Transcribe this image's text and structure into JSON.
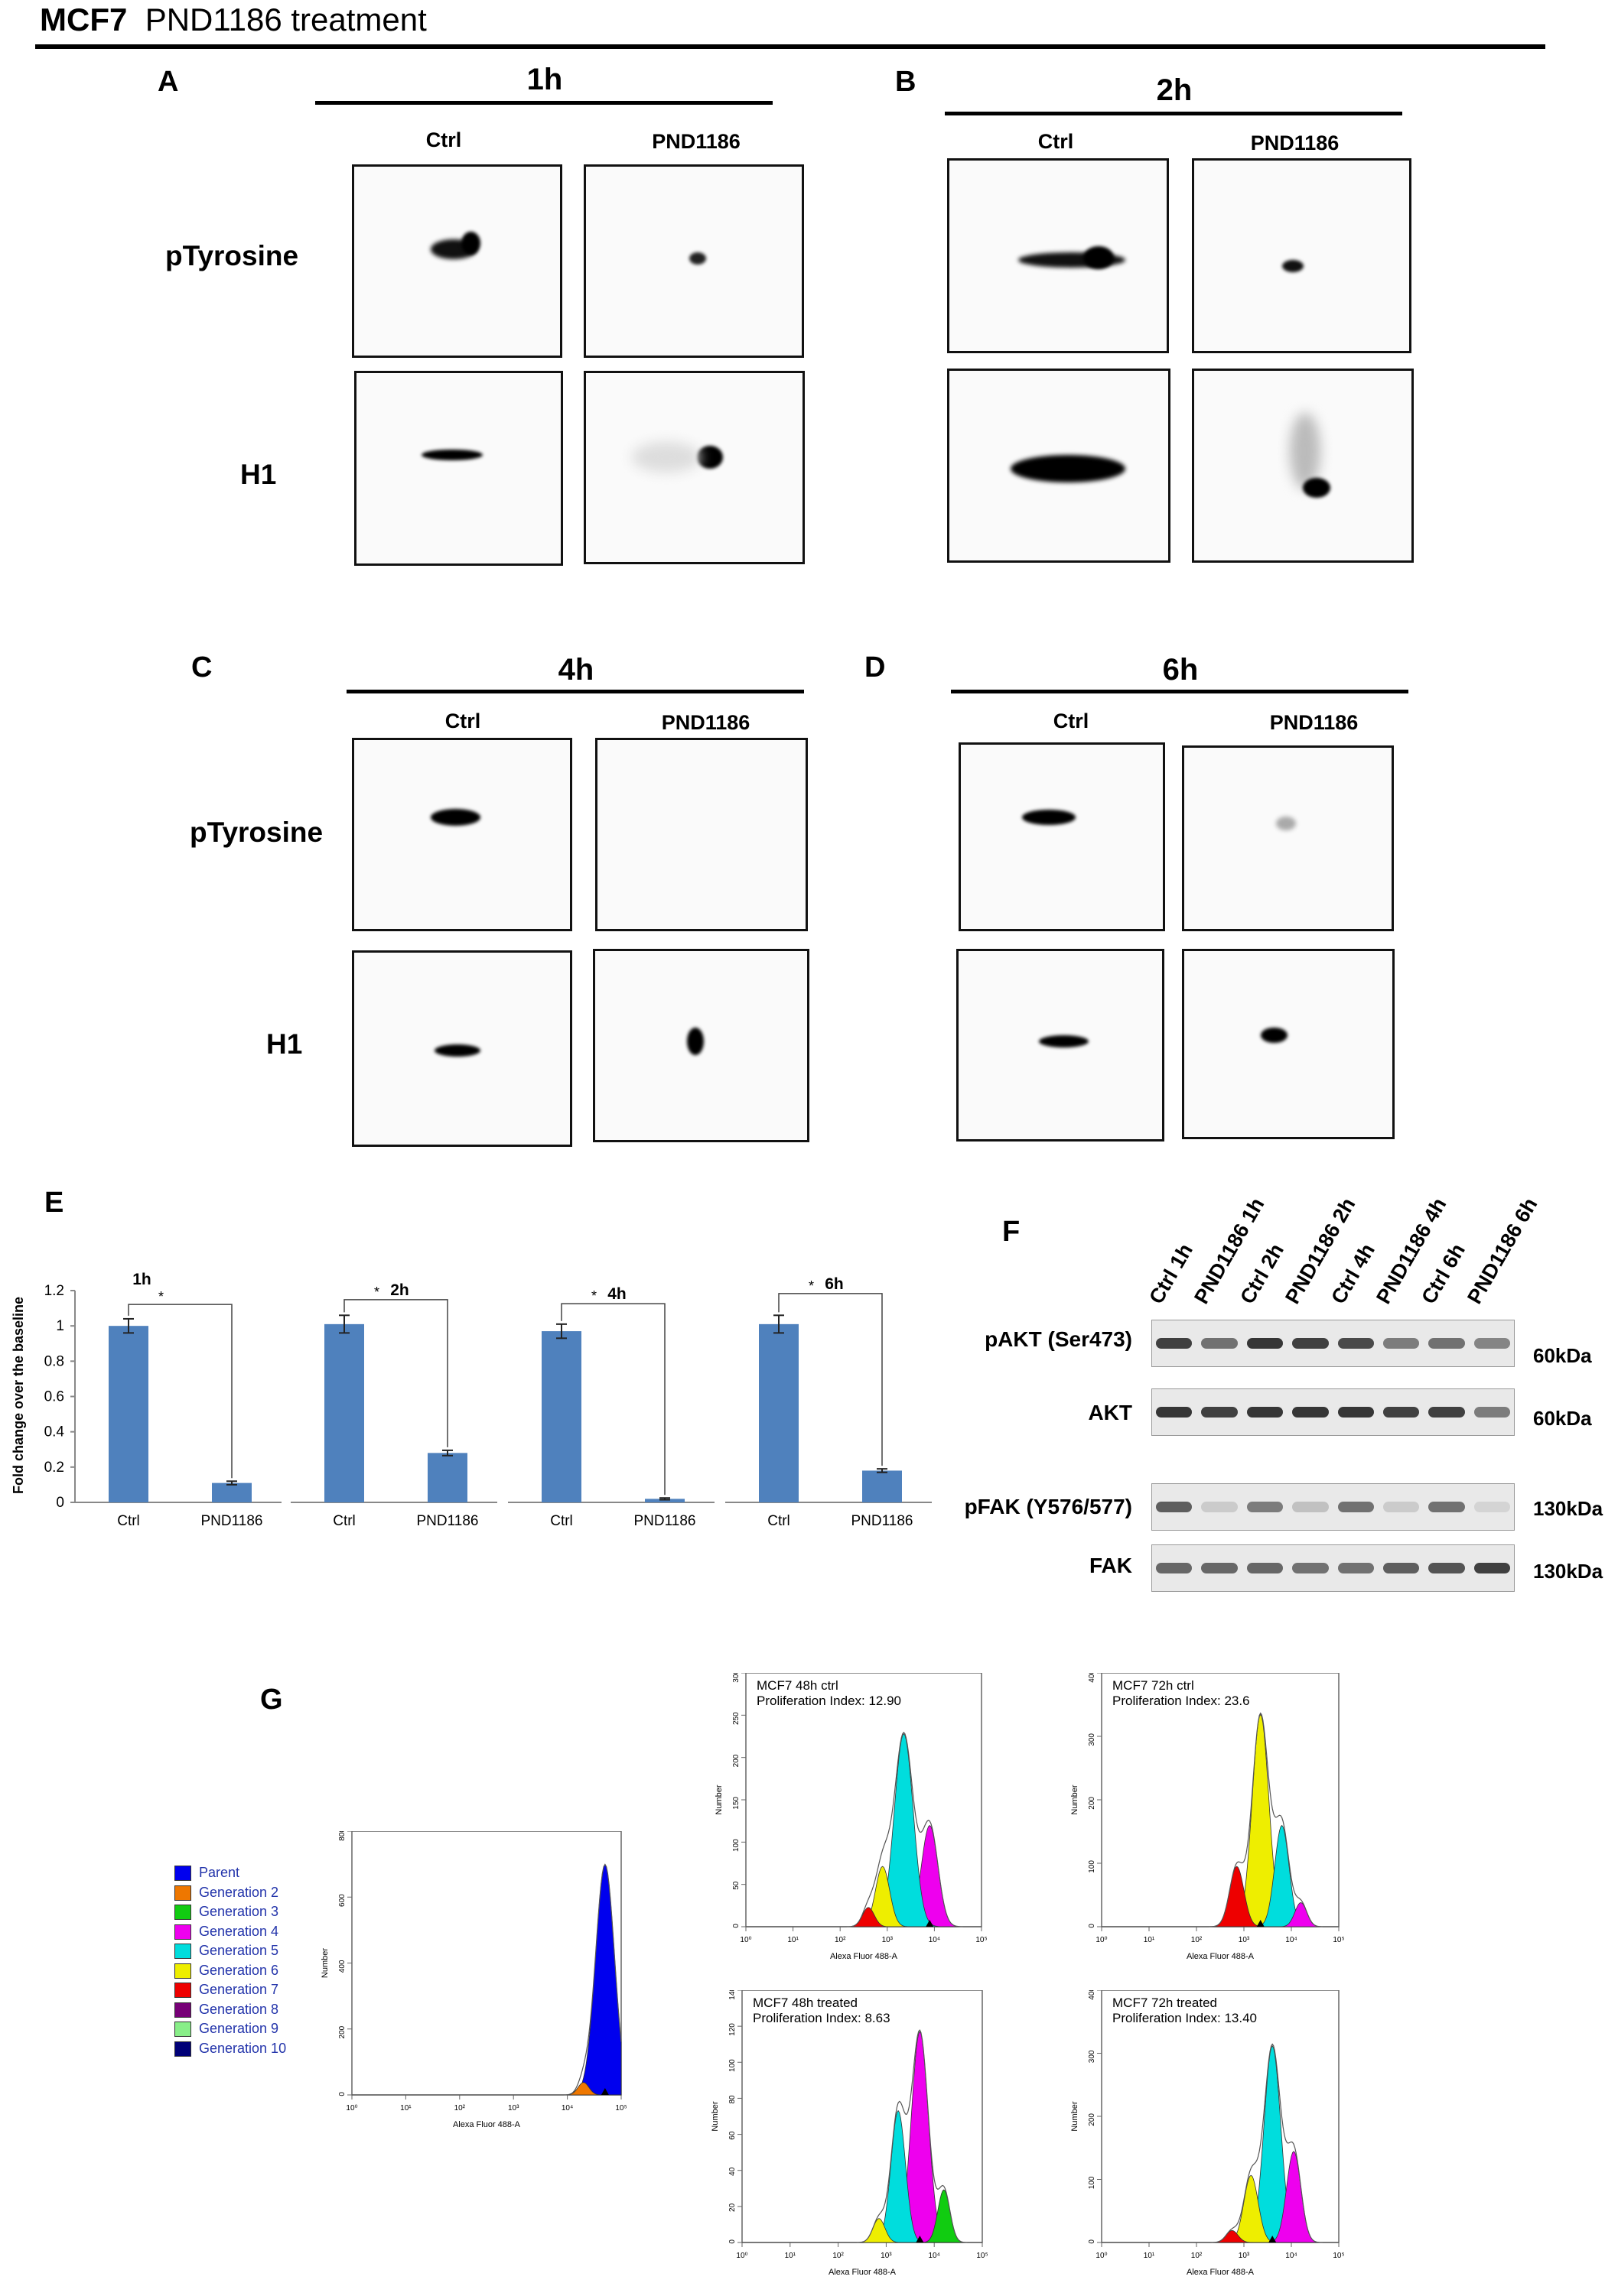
{
  "figure_title": {
    "cell_line": "MCF7",
    "treatment": "PND1186 treatment"
  },
  "panels": {
    "A": {
      "label": "A",
      "time": "1h",
      "cols": [
        "Ctrl",
        "PND1186"
      ],
      "rows": [
        "pTyrosine",
        "H1"
      ]
    },
    "B": {
      "label": "B",
      "time": "2h",
      "cols": [
        "Ctrl",
        "PND1186"
      ]
    },
    "C": {
      "label": "C",
      "time": "4h",
      "cols": [
        "Ctrl",
        "PND1186"
      ],
      "rows": [
        "pTyrosine",
        "H1"
      ]
    },
    "D": {
      "label": "D",
      "time": "6h",
      "cols": [
        "Ctrl",
        "PND1186"
      ]
    },
    "E": {
      "label": "E"
    },
    "F": {
      "label": "F"
    },
    "G": {
      "label": "G"
    }
  },
  "chart_data": [
    {
      "type": "bar",
      "ylabel": "Fold change over the baseline",
      "ylim": [
        0,
        1.2
      ],
      "yticks": [
        "0",
        "0.2",
        "0.4",
        "0.6",
        "0.8",
        "1",
        "1.2"
      ],
      "groups": [
        {
          "time": "1h",
          "categories": [
            "Ctrl",
            "PND1186"
          ],
          "values": [
            1.0,
            0.11
          ],
          "errors": [
            0.04,
            0.01
          ],
          "sig": "*"
        },
        {
          "time": "2h",
          "categories": [
            "Ctrl",
            "PND1186"
          ],
          "values": [
            1.01,
            0.28
          ],
          "errors": [
            0.05,
            0.015
          ],
          "sig": "*"
        },
        {
          "time": "4h",
          "categories": [
            "Ctrl",
            "PND1186"
          ],
          "values": [
            0.97,
            0.02
          ],
          "errors": [
            0.04,
            0.005
          ],
          "sig": "*"
        },
        {
          "time": "6h",
          "categories": [
            "Ctrl",
            "PND1186"
          ],
          "values": [
            1.01,
            0.18
          ],
          "errors": [
            0.05,
            0.01
          ],
          "sig": "*"
        }
      ],
      "color": "#4f81bd"
    }
  ],
  "western": {
    "lanes": [
      "Ctrl 1h",
      "PND1186 1h",
      "Ctrl 2h",
      "PND1186 2h",
      "Ctrl 4h",
      "PND1186 4h",
      "Ctrl 6h",
      "PND1186 6h"
    ],
    "rows": [
      {
        "label": "pAKT (Ser473)",
        "kda": "60kDa",
        "intensity": [
          0.85,
          0.6,
          0.9,
          0.85,
          0.8,
          0.55,
          0.6,
          0.5
        ]
      },
      {
        "label": "AKT",
        "kda": "60kDa",
        "intensity": [
          0.9,
          0.85,
          0.9,
          0.9,
          0.9,
          0.85,
          0.85,
          0.55
        ]
      },
      {
        "label": "pFAK (Y576/577)",
        "kda": "130kDa",
        "intensity": [
          0.7,
          0.15,
          0.55,
          0.2,
          0.6,
          0.15,
          0.6,
          0.1
        ]
      },
      {
        "label": "FAK",
        "kda": "130kDa",
        "intensity": [
          0.65,
          0.65,
          0.65,
          0.6,
          0.6,
          0.7,
          0.75,
          0.85
        ]
      }
    ]
  },
  "flow": {
    "legend": [
      {
        "name": "Parent",
        "color": "#0000ee"
      },
      {
        "name": "Generation 2",
        "color": "#ee7700"
      },
      {
        "name": "Generation 3",
        "color": "#11cc11"
      },
      {
        "name": "Generation 4",
        "color": "#ee00ee"
      },
      {
        "name": "Generation 5",
        "color": "#00dddd"
      },
      {
        "name": "Generation 6",
        "color": "#eeee00"
      },
      {
        "name": "Generation 7",
        "color": "#ee0000"
      },
      {
        "name": "Generation 8",
        "color": "#770077"
      },
      {
        "name": "Generation 9",
        "color": "#88ee88"
      },
      {
        "name": "Generation 10",
        "color": "#000077"
      }
    ],
    "xlabel": "Alexa Fluor 488-A",
    "ylabel": "Number",
    "plots": [
      {
        "title": "",
        "index_label": "",
        "yticks": [
          "0",
          "200",
          "400",
          "600",
          "800"
        ]
      },
      {
        "title": "MCF7 48h ctrl",
        "index_label": "Proliferation Index: 12.90",
        "yticks": [
          "0",
          "50",
          "100",
          "150",
          "200",
          "250",
          "300"
        ]
      },
      {
        "title": "MCF7 72h ctrl",
        "index_label": "Proliferation Index: 23.6",
        "yticks": [
          "0",
          "100",
          "200",
          "300",
          "400"
        ]
      },
      {
        "title": "MCF7 48h treated",
        "index_label": "Proliferation Index: 8.63",
        "yticks": [
          "0",
          "20",
          "40",
          "60",
          "80",
          "100",
          "120",
          "140"
        ]
      },
      {
        "title": "MCF7 72h treated",
        "index_label": "Proliferation Index: 13.40",
        "yticks": [
          "0",
          "100",
          "200",
          "300",
          "400"
        ]
      }
    ],
    "xticks": [
      "10⁰",
      "10¹",
      "10²",
      "10³",
      "10⁴",
      "10⁵"
    ]
  }
}
